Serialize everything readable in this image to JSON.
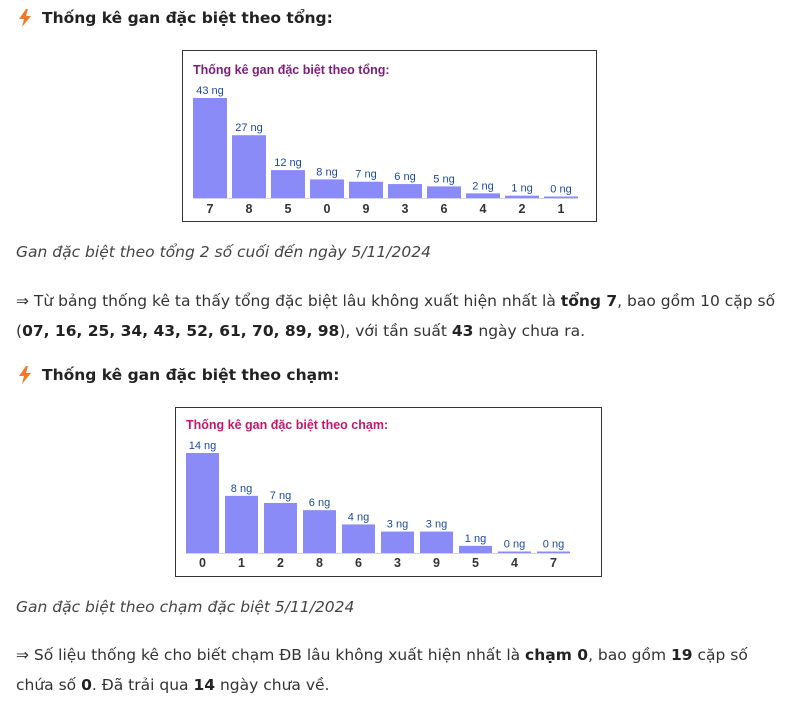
{
  "colors": {
    "bar": "#8b8bf7",
    "accent_icon": "#f07a2a",
    "chart1_title": "#7a1f7a",
    "chart2_title": "#c2186b",
    "bar_label": "#1a4a9c"
  },
  "section1": {
    "heading": "Thống kê gan đặc biệt theo tổng:",
    "icon": "lightning-icon",
    "caption": "Gan đặc biệt theo tổng 2 số cuối đến ngày 5/11/2024",
    "para": {
      "arrow": "⇒",
      "t1": " Từ bảng thống kê ta thấy tổng đặc biệt lâu không xuất hiện nhất là ",
      "b1": "tổng 7",
      "t2": ", bao gồm 10 cặp số (",
      "b2": "07, 16, 25, 34, 43, 52, 61, 70, 89, 98",
      "t3": "), với tần suất ",
      "b3": "43",
      "t4": " ngày chưa ra."
    }
  },
  "section2": {
    "heading": "Thống kê gan đặc biệt theo chạm:",
    "icon": "lightning-icon",
    "caption": "Gan đặc biệt theo chạm đặc biệt 5/11/2024",
    "para": {
      "arrow": "⇒",
      "t1": " Số liệu thống kê cho biết chạm ĐB lâu không xuất hiện nhất là ",
      "b1": "chạm 0",
      "t2": ", bao gồm ",
      "b2": "19",
      "t3": " cặp số chứa số ",
      "b3": "0",
      "t4": ". Đã trải qua ",
      "b4": "14",
      "t5": " ngày chưa về."
    }
  },
  "chart_data": [
    {
      "type": "bar",
      "title": "Thống kê gan đặc biệt theo tổng:",
      "categories": [
        "7",
        "8",
        "5",
        "0",
        "9",
        "3",
        "6",
        "4",
        "2",
        "1"
      ],
      "values": [
        43,
        27,
        12,
        8,
        7,
        6,
        5,
        2,
        1,
        0
      ],
      "value_labels": [
        "43 ng",
        "27 ng",
        "12 ng",
        "8 ng",
        "7 ng",
        "6 ng",
        "5 ng",
        "2 ng",
        "1 ng",
        "0 ng"
      ],
      "ylim": [
        0,
        43
      ],
      "grid": false
    },
    {
      "type": "bar",
      "title": "Thống kê gan đặc biệt theo chạm:",
      "categories": [
        "0",
        "1",
        "2",
        "8",
        "6",
        "3",
        "9",
        "5",
        "4",
        "7"
      ],
      "values": [
        14,
        8,
        7,
        6,
        4,
        3,
        3,
        1,
        0,
        0
      ],
      "value_labels": [
        "14 ng",
        "8 ng",
        "7 ng",
        "6 ng",
        "4 ng",
        "3 ng",
        "3 ng",
        "1 ng",
        "0 ng",
        "0 ng"
      ],
      "ylim": [
        0,
        14
      ],
      "grid": false
    }
  ]
}
